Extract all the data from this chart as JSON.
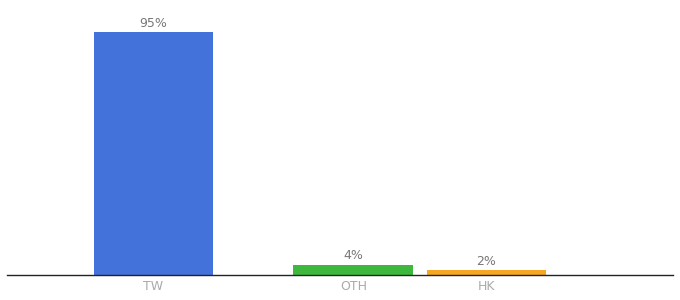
{
  "categories": [
    "TW",
    "OTH",
    "HK"
  ],
  "values": [
    95,
    4,
    2
  ],
  "bar_colors": [
    "#4472db",
    "#3db83d",
    "#f5a623"
  ],
  "labels": [
    "95%",
    "4%",
    "2%"
  ],
  "ylim": [
    0,
    105
  ],
  "background_color": "#ffffff",
  "label_fontsize": 9,
  "tick_fontsize": 9,
  "bar_positions": [
    0.22,
    0.52,
    0.72
  ],
  "bar_width": 0.18,
  "xlim": [
    0.0,
    1.0
  ]
}
